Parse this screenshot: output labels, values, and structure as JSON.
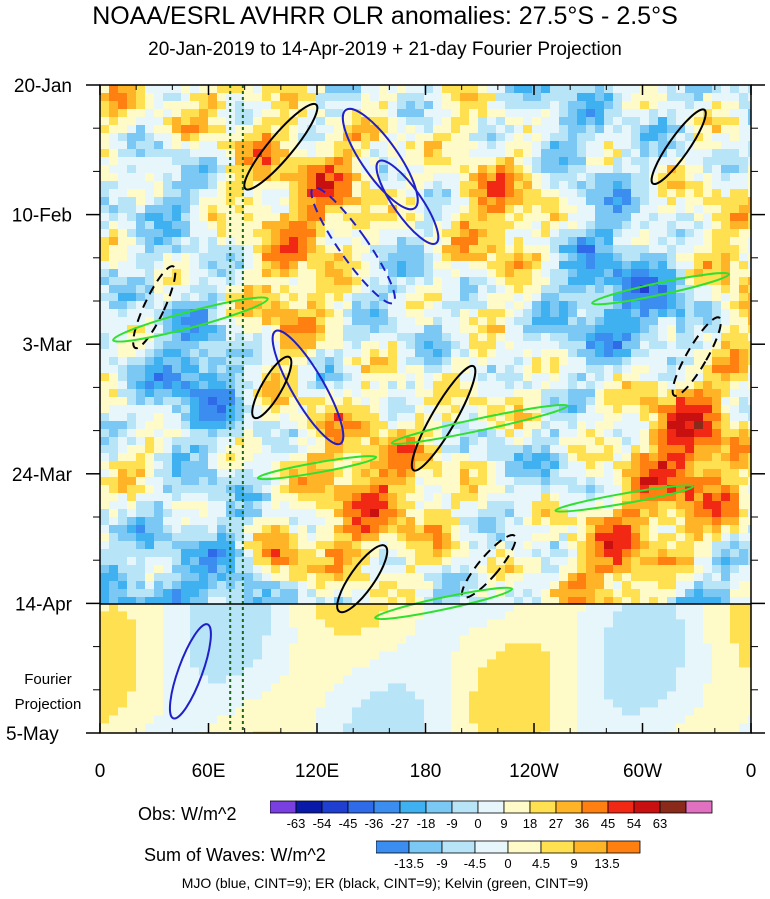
{
  "title": "NOAA/ESRL AVHRR OLR anomalies: 27.5°S - 2.5°S",
  "subtitle": "20-Jan-2019 to 14-Apr-2019 + 21-day Fourier Projection",
  "chart_data": {
    "type": "heatmap",
    "x_ticks": [
      "0",
      "60E",
      "120E",
      "180",
      "120W",
      "60W",
      "0"
    ],
    "x_tick_values_deg_east": [
      0,
      60,
      120,
      180,
      240,
      300,
      360
    ],
    "y_ticks": [
      "20-Jan",
      "10-Feb",
      "3-Mar",
      "24-Mar",
      "14-Apr",
      "5-May"
    ],
    "y_tick_dates": [
      "2019-01-20",
      "2019-02-10",
      "2019-03-03",
      "2019-03-24",
      "2019-04-14",
      "2019-05-05"
    ],
    "observation_end": "14-Apr",
    "projection_label_1": "Fourier",
    "projection_label_2": "Projection",
    "reference_longitudes_deg_east": [
      72,
      79
    ],
    "obs_colorbar": {
      "label": "Obs: W/m^2",
      "levels": [
        "-63",
        "-54",
        "-45",
        "-36",
        "-27",
        "-18",
        "-9",
        "0",
        "9",
        "18",
        "27",
        "36",
        "45",
        "54",
        "63"
      ],
      "colors": [
        "#7a3fe0",
        "#0a1aa8",
        "#1f3fd0",
        "#2f6ae8",
        "#3b8ef0",
        "#3fb0f0",
        "#7cc8f5",
        "#b8e4f8",
        "#e6f6fa",
        "#fffbc8",
        "#ffe050",
        "#ffb428",
        "#ff8010",
        "#f02814",
        "#c81010",
        "#8a2a1a",
        "#e070c0"
      ]
    },
    "waves_colorbar": {
      "label": "Sum of Waves: W/m^2",
      "levels": [
        "-13.5",
        "-9",
        "-4.5",
        "0",
        "4.5",
        "9",
        "13.5"
      ],
      "colors": [
        "#3b8ef0",
        "#7cc8f5",
        "#b8e4f8",
        "#e6f6fa",
        "#fffbc8",
        "#ffe050",
        "#ffb428",
        "#ff8010"
      ]
    },
    "wave_contours": {
      "mjo_color": "#2020c8",
      "er_color": "#000000",
      "kelvin_color": "#30e030"
    }
  },
  "footnote": "MJO (blue, CINT=9); ER (black, CINT=9); Kelvin (green, CINT=9)"
}
